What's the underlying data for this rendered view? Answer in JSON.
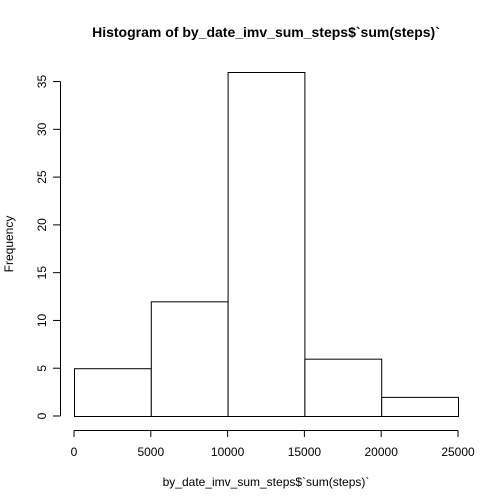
{
  "chart_data": {
    "type": "bar",
    "subtype": "histogram",
    "title": "Histogram of by_date_imv_sum_steps$`sum(steps)`",
    "xlabel": "by_date_imv_sum_steps$`sum(steps)`",
    "ylabel": "Frequency",
    "bins": [
      {
        "start": 0,
        "end": 5000,
        "count": 5
      },
      {
        "start": 5000,
        "end": 10000,
        "count": 12
      },
      {
        "start": 10000,
        "end": 15000,
        "count": 36
      },
      {
        "start": 15000,
        "end": 20000,
        "count": 6
      },
      {
        "start": 20000,
        "end": 25000,
        "count": 2
      }
    ],
    "xlim": [
      0,
      25000
    ],
    "ylim": [
      0,
      36
    ],
    "x_ticks": [
      "0",
      "5000",
      "10000",
      "15000",
      "20000",
      "25000"
    ],
    "y_ticks": [
      "0",
      "5",
      "10",
      "15",
      "20",
      "25",
      "30",
      "35"
    ],
    "grid": false,
    "fill_color": "#ffffff",
    "stroke_color": "#000000"
  }
}
